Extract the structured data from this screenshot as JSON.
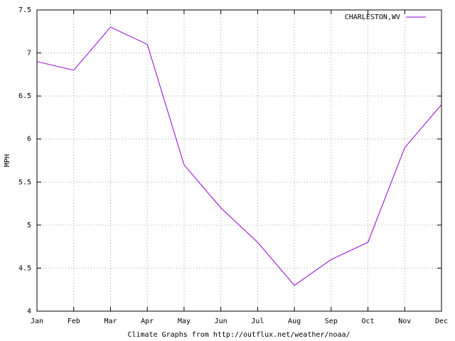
{
  "chart_data": {
    "type": "line",
    "xlabel": "Climate Graphs from http://outflux.net/weather/noaa/",
    "ylabel": "MPH",
    "categories": [
      "Jan",
      "Feb",
      "Mar",
      "Apr",
      "May",
      "Jun",
      "Jul",
      "Aug",
      "Sep",
      "Oct",
      "Nov",
      "Dec"
    ],
    "series": [
      {
        "name": "CHARLESTON,WV",
        "color": "#9400d3",
        "values": [
          6.9,
          6.8,
          7.3,
          7.1,
          5.7,
          5.2,
          4.8,
          4.3,
          4.6,
          4.8,
          5.9,
          6.4
        ]
      }
    ],
    "ylim": [
      4,
      7.5
    ],
    "yticks": [
      4,
      4.5,
      5,
      5.5,
      6,
      6.5,
      7,
      7.5
    ],
    "grid": true,
    "legend": "top-right"
  }
}
